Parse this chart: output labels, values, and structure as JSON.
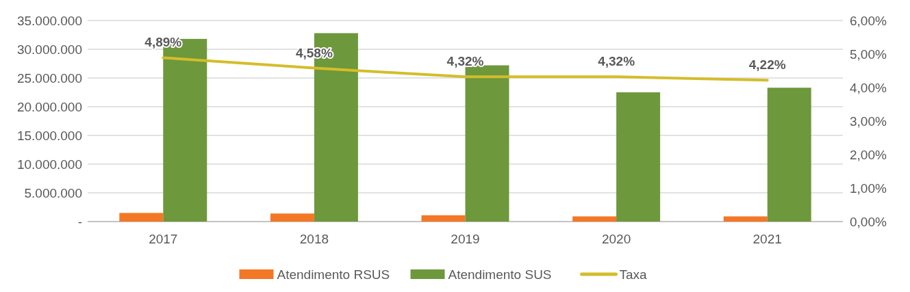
{
  "chart_data": {
    "type": "bar",
    "categories": [
      "2017",
      "2018",
      "2019",
      "2020",
      "2021"
    ],
    "series": [
      {
        "name": "Atendimento RSUS",
        "color": "#f47726",
        "values": [
          1500000,
          1400000,
          1100000,
          900000,
          900000
        ]
      },
      {
        "name": "Atendimento SUS",
        "color": "#6d983c",
        "values": [
          31800000,
          32800000,
          27200000,
          22500000,
          23300000
        ]
      },
      {
        "name": "Taxa",
        "type": "line",
        "axis": "y2",
        "color": "#d4bd2a",
        "values": [
          4.89,
          4.58,
          4.32,
          4.32,
          4.22
        ],
        "value_labels": [
          "4,89%",
          "4,58%",
          "4,32%",
          "4,32%",
          "4,22%"
        ]
      }
    ],
    "ylim": [
      0,
      35000000
    ],
    "yticks": [
      {
        "value": 0,
        "label": "-"
      },
      {
        "value": 5000000,
        "label": "5.000.000"
      },
      {
        "value": 10000000,
        "label": "10.000.000"
      },
      {
        "value": 15000000,
        "label": "15.000.000"
      },
      {
        "value": 20000000,
        "label": "20.000.000"
      },
      {
        "value": 25000000,
        "label": "25.000.000"
      },
      {
        "value": 30000000,
        "label": "30.000.000"
      },
      {
        "value": 35000000,
        "label": "35.000.000"
      }
    ],
    "y2lim": [
      0,
      6
    ],
    "y2ticks": [
      {
        "value": 0,
        "label": "0,00%"
      },
      {
        "value": 1,
        "label": "1,00%"
      },
      {
        "value": 2,
        "label": "2,00%"
      },
      {
        "value": 3,
        "label": "3,00%"
      },
      {
        "value": 4,
        "label": "4,00%"
      },
      {
        "value": 5,
        "label": "5,00%"
      },
      {
        "value": 6,
        "label": "6,00%"
      }
    ],
    "grid": "y",
    "legend": "bottom"
  }
}
